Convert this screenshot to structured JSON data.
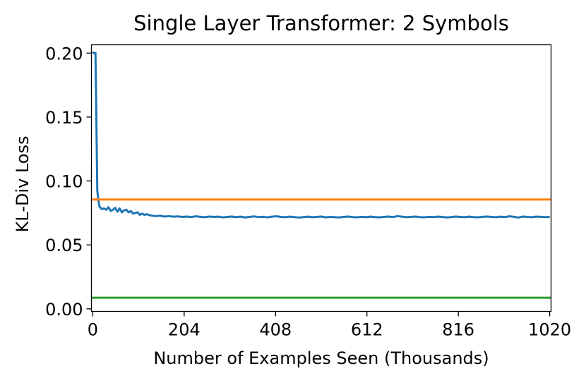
{
  "chart_data": {
    "type": "line",
    "title": "Single Layer Transformer: 2 Symbols",
    "xlabel": "Number of Examples Seen (Thousands)",
    "ylabel": "KL-Div Loss",
    "xlim": [
      -3,
      1023
    ],
    "ylim": [
      -0.002,
      0.2065
    ],
    "xticks": [
      0,
      204,
      408,
      612,
      816,
      1020
    ],
    "xtick_labels": [
      "0",
      "204",
      "408",
      "612",
      "816",
      "1020"
    ],
    "yticks": [
      0.0,
      0.05,
      0.1,
      0.15,
      0.2
    ],
    "ytick_labels": [
      "0.00",
      "0.05",
      "0.10",
      "0.15",
      "0.20"
    ],
    "grid": false,
    "series": [
      {
        "color": "#1f77b4",
        "x": [
          0,
          2,
          6,
          8,
          10,
          12,
          15,
          20,
          25,
          30,
          35,
          40,
          45,
          50,
          55,
          60,
          65,
          70,
          75,
          80,
          85,
          90,
          95,
          100,
          105,
          110,
          115,
          120,
          130,
          140,
          150,
          160,
          170,
          180,
          190,
          200,
          210,
          220,
          230,
          240,
          250,
          260,
          270,
          280,
          290,
          300,
          310,
          320,
          330,
          340,
          350,
          360,
          370,
          380,
          390,
          400,
          410,
          420,
          430,
          440,
          450,
          460,
          470,
          480,
          490,
          500,
          510,
          520,
          530,
          540,
          550,
          560,
          570,
          580,
          590,
          600,
          610,
          620,
          630,
          640,
          650,
          660,
          670,
          680,
          690,
          700,
          710,
          720,
          730,
          740,
          750,
          760,
          770,
          780,
          790,
          800,
          810,
          820,
          830,
          840,
          850,
          860,
          870,
          880,
          890,
          900,
          910,
          920,
          930,
          940,
          950,
          960,
          970,
          980,
          990,
          1000,
          1010,
          1020
        ],
        "y": [
          0.201,
          0.2,
          0.2,
          0.15,
          0.093,
          0.086,
          0.08,
          0.078,
          0.0785,
          0.0775,
          0.0795,
          0.0765,
          0.0775,
          0.079,
          0.076,
          0.0785,
          0.0755,
          0.077,
          0.0775,
          0.0755,
          0.0765,
          0.0745,
          0.075,
          0.0755,
          0.0735,
          0.0745,
          0.0735,
          0.074,
          0.073,
          0.0725,
          0.0728,
          0.0722,
          0.0725,
          0.0721,
          0.0723,
          0.0719,
          0.0722,
          0.0718,
          0.0724,
          0.072,
          0.0717,
          0.0722,
          0.0719,
          0.0721,
          0.0716,
          0.0719,
          0.0722,
          0.0718,
          0.0721,
          0.0715,
          0.0719,
          0.0723,
          0.0718,
          0.072,
          0.0716,
          0.0721,
          0.0724,
          0.0719,
          0.0717,
          0.0721,
          0.0718,
          0.0714,
          0.0718,
          0.0721,
          0.0717,
          0.0719,
          0.0722,
          0.0716,
          0.0719,
          0.0717,
          0.0715,
          0.0719,
          0.0722,
          0.0718,
          0.0716,
          0.072,
          0.0717,
          0.0721,
          0.0718,
          0.0716,
          0.0719,
          0.0722,
          0.0718,
          0.0725,
          0.0721,
          0.0717,
          0.0719,
          0.0722,
          0.0718,
          0.0716,
          0.072,
          0.0718,
          0.0721,
          0.0719,
          0.0715,
          0.0718,
          0.0722,
          0.0719,
          0.0717,
          0.0721,
          0.0718,
          0.0716,
          0.072,
          0.0722,
          0.0719,
          0.0717,
          0.0721,
          0.0718,
          0.0724,
          0.072,
          0.0714,
          0.0722,
          0.0719,
          0.0717,
          0.0721,
          0.072,
          0.0718,
          0.0719
        ]
      },
      {
        "color": "#ff7f0e",
        "x": [
          -3,
          1023
        ],
        "y": [
          0.0855,
          0.0855
        ]
      },
      {
        "color": "#2ca02c",
        "x": [
          -3,
          1023
        ],
        "y": [
          0.0087,
          0.0087
        ]
      }
    ]
  }
}
